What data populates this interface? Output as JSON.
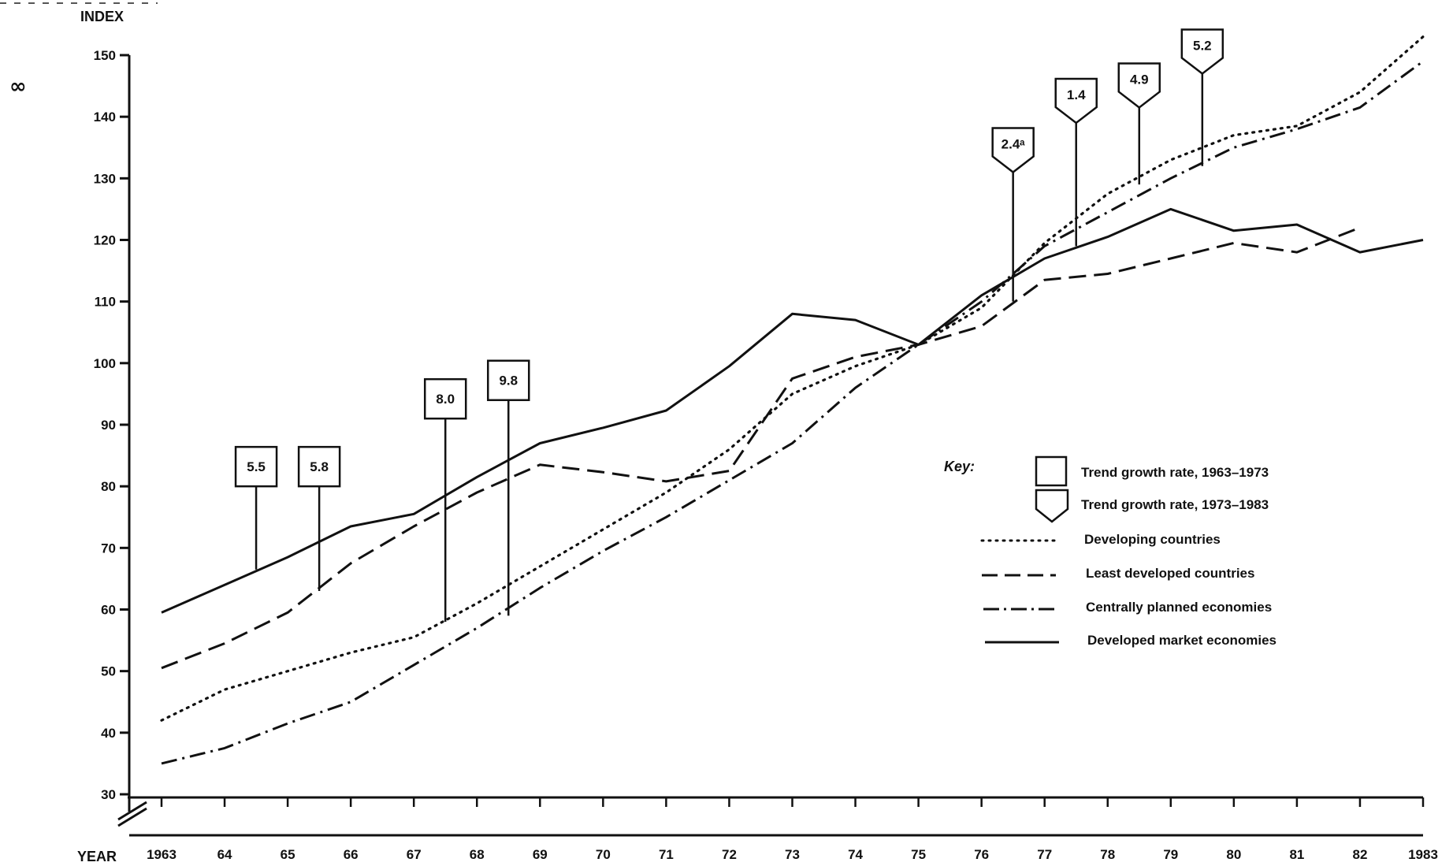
{
  "page": {
    "margin_mark": "∞"
  },
  "chart_data": {
    "type": "line",
    "ylabel": "INDEX",
    "xlabel": "YEAR",
    "ylim": [
      30,
      150
    ],
    "xlim": [
      1963,
      1983
    ],
    "yticks": [
      30,
      40,
      50,
      60,
      70,
      80,
      90,
      100,
      110,
      120,
      130,
      140,
      150
    ],
    "xticks": [
      {
        "x": 1963,
        "label": "1963"
      },
      {
        "x": 1964,
        "label": "64"
      },
      {
        "x": 1965,
        "label": "65"
      },
      {
        "x": 1966,
        "label": "66"
      },
      {
        "x": 1967,
        "label": "67"
      },
      {
        "x": 1968,
        "label": "68"
      },
      {
        "x": 1969,
        "label": "69"
      },
      {
        "x": 1970,
        "label": "70"
      },
      {
        "x": 1971,
        "label": "71"
      },
      {
        "x": 1972,
        "label": "72"
      },
      {
        "x": 1973,
        "label": "73"
      },
      {
        "x": 1974,
        "label": "74"
      },
      {
        "x": 1975,
        "label": "75"
      },
      {
        "x": 1976,
        "label": "76"
      },
      {
        "x": 1977,
        "label": "77"
      },
      {
        "x": 1978,
        "label": "78"
      },
      {
        "x": 1979,
        "label": "79"
      },
      {
        "x": 1980,
        "label": "80"
      },
      {
        "x": 1981,
        "label": "81"
      },
      {
        "x": 1982,
        "label": "82"
      },
      {
        "x": 1983,
        "label": "1983"
      }
    ],
    "series": [
      {
        "name": "Developing countries",
        "style": "dotted",
        "points": [
          [
            1963,
            42
          ],
          [
            1964,
            47
          ],
          [
            1965,
            50
          ],
          [
            1966,
            53
          ],
          [
            1967,
            55.5
          ],
          [
            1968,
            61
          ],
          [
            1969,
            67
          ],
          [
            1970,
            73
          ],
          [
            1971,
            79
          ],
          [
            1972,
            86
          ],
          [
            1973,
            95
          ],
          [
            1974,
            99.5
          ],
          [
            1975,
            103
          ],
          [
            1976,
            109
          ],
          [
            1977,
            119.5
          ],
          [
            1978,
            127.5
          ],
          [
            1979,
            133
          ],
          [
            1980,
            137
          ],
          [
            1981,
            138.5
          ],
          [
            1982,
            144
          ],
          [
            1983,
            153
          ]
        ]
      },
      {
        "name": "Least developed countries",
        "style": "dashed",
        "points": [
          [
            1963,
            50.5
          ],
          [
            1964,
            54.5
          ],
          [
            1965,
            59.5
          ],
          [
            1966,
            67.5
          ],
          [
            1967,
            73.5
          ],
          [
            1968,
            79
          ],
          [
            1969,
            83.5
          ],
          [
            1970,
            82.3
          ],
          [
            1971,
            80.8
          ],
          [
            1972,
            82.5
          ],
          [
            1973,
            97.5
          ],
          [
            1974,
            101
          ],
          [
            1975,
            103
          ],
          [
            1976,
            106
          ],
          [
            1977,
            113.5
          ],
          [
            1978,
            114.5
          ],
          [
            1979,
            117
          ],
          [
            1980,
            119.5
          ],
          [
            1981,
            118
          ],
          [
            1982,
            122
          ]
        ]
      },
      {
        "name": "Centrally planned economies",
        "style": "dashdot",
        "points": [
          [
            1963,
            35
          ],
          [
            1964,
            37.5
          ],
          [
            1965,
            41.5
          ],
          [
            1966,
            45
          ],
          [
            1967,
            51
          ],
          [
            1968,
            57
          ],
          [
            1969,
            63.5
          ],
          [
            1970,
            69.5
          ],
          [
            1971,
            75
          ],
          [
            1972,
            81
          ],
          [
            1973,
            87
          ],
          [
            1974,
            96
          ],
          [
            1975,
            103
          ],
          [
            1976,
            110
          ],
          [
            1977,
            119
          ],
          [
            1978,
            124.5
          ],
          [
            1979,
            130
          ],
          [
            1980,
            135
          ],
          [
            1981,
            138
          ],
          [
            1982,
            141.5
          ],
          [
            1983,
            149
          ]
        ]
      },
      {
        "name": "Developed market economies",
        "style": "solid",
        "points": [
          [
            1963,
            59.5
          ],
          [
            1964,
            64
          ],
          [
            1965,
            68.5
          ],
          [
            1966,
            73.5
          ],
          [
            1967,
            75.5
          ],
          [
            1968,
            81.5
          ],
          [
            1969,
            87
          ],
          [
            1970,
            89.5
          ],
          [
            1971,
            92.3
          ],
          [
            1972,
            99.5
          ],
          [
            1973,
            108
          ],
          [
            1974,
            107
          ],
          [
            1975,
            103
          ],
          [
            1976,
            111
          ],
          [
            1977,
            117
          ],
          [
            1978,
            120.5
          ],
          [
            1979,
            125
          ],
          [
            1980,
            121.5
          ],
          [
            1981,
            122.5
          ],
          [
            1982,
            118
          ],
          [
            1983,
            120
          ]
        ]
      }
    ],
    "callouts": [
      {
        "label": "5.5",
        "shape": "square",
        "x": 1964.5,
        "box_y": 80,
        "base_y": 66.5
      },
      {
        "label": "5.8",
        "shape": "square",
        "x": 1965.5,
        "box_y": 80,
        "base_y": 63
      },
      {
        "label": "8.0",
        "shape": "square",
        "x": 1967.5,
        "box_y": 91,
        "base_y": 58
      },
      {
        "label": "9.8",
        "shape": "square",
        "x": 1968.5,
        "box_y": 94,
        "base_y": 59
      },
      {
        "label": "2.4ᵃ",
        "shape": "pentagon",
        "x": 1976.5,
        "box_y": 131,
        "base_y": 110
      },
      {
        "label": "1.4",
        "shape": "pentagon",
        "x": 1977.5,
        "box_y": 139,
        "base_y": 119
      },
      {
        "label": "4.9",
        "shape": "pentagon",
        "x": 1978.5,
        "box_y": 141.5,
        "base_y": 129
      },
      {
        "label": "5.2",
        "shape": "pentagon",
        "x": 1979.5,
        "box_y": 147,
        "base_y": 132
      }
    ],
    "key": {
      "title": "Key:",
      "shapes": [
        {
          "shape": "square",
          "label": "Trend growth rate, 1963–1973"
        },
        {
          "shape": "pentagon",
          "label": "Trend growth rate, 1973–1983"
        }
      ],
      "lines": [
        {
          "style": "dotted",
          "label": "Developing countries"
        },
        {
          "style": "dashed",
          "label": "Least developed countries"
        },
        {
          "style": "dashdot",
          "label": "Centrally planned economies"
        },
        {
          "style": "solid",
          "label": "Developed market economies"
        }
      ]
    }
  }
}
